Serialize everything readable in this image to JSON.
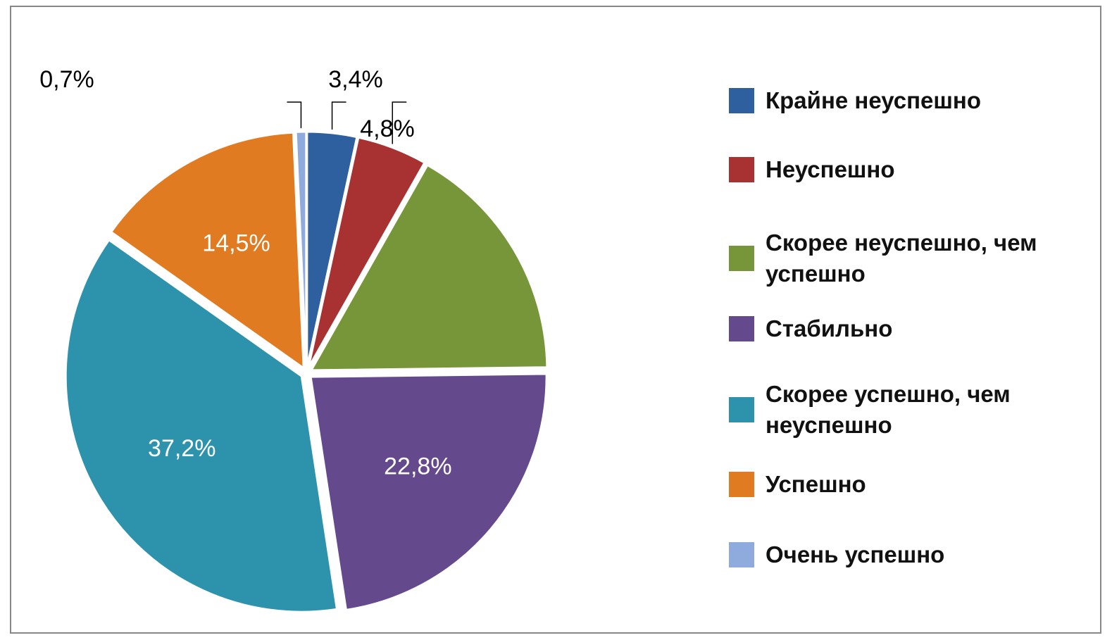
{
  "chart_data": {
    "type": "pie",
    "categories": [
      "Крайне неуспешно",
      "Неуспешно",
      "Скорее неуспешно, чем успешно",
      "Стабильно",
      "Скорее успешно, чем неуспешно",
      "Успешно",
      "Очень успешно"
    ],
    "values": [
      3.4,
      4.8,
      16.6,
      22.8,
      37.2,
      14.5,
      0.7
    ],
    "value_labels": [
      "3,4%",
      "4,8%",
      null,
      "22,8%",
      "37,2%",
      "14,5%",
      "0,7%"
    ],
    "colors": [
      "#2e5f9e",
      "#a83232",
      "#77963a",
      "#644a8c",
      "#2d93ad",
      "#e07b22",
      "#8faadc"
    ],
    "legend": "right"
  }
}
